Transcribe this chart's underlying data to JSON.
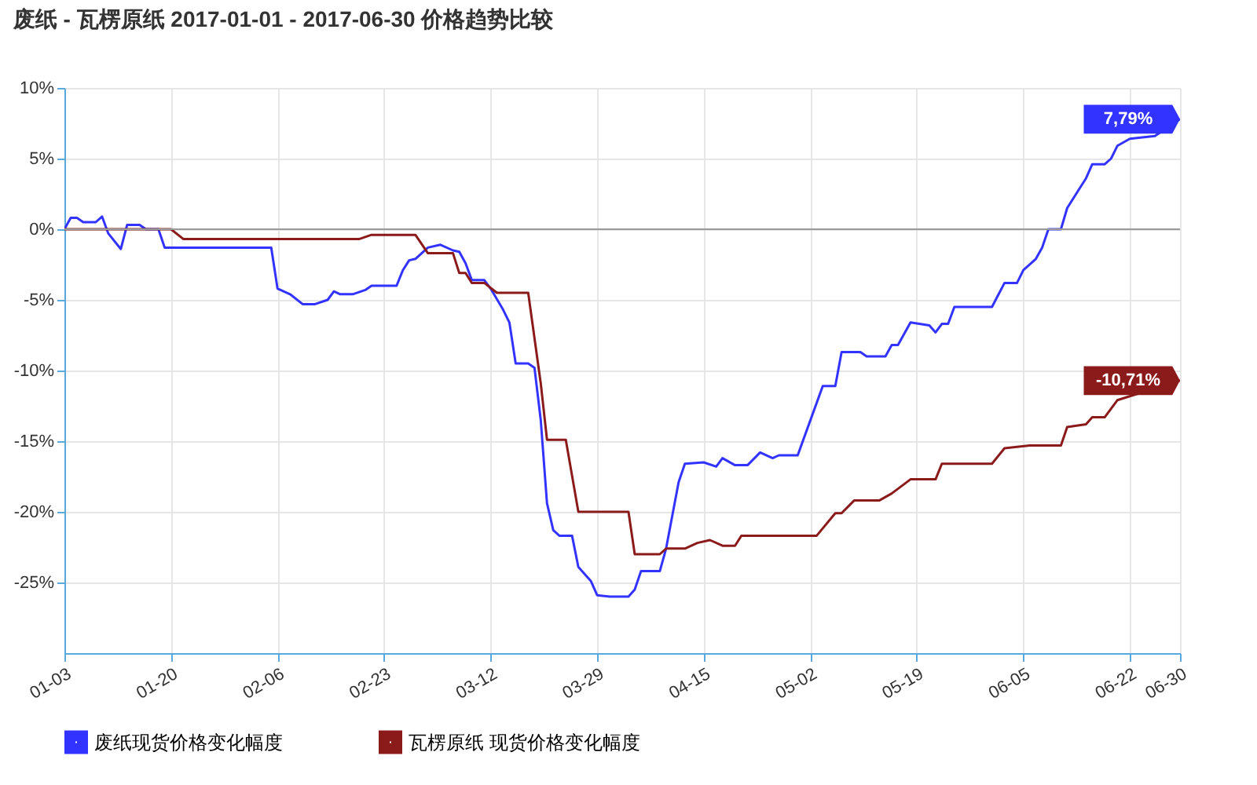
{
  "chart_data": {
    "type": "line",
    "title": "废纸 - 瓦楞原纸 2017-01-01 - 2017-06-30 价格趋势比较",
    "x": [
      "2017-01-03",
      "2017-01-04",
      "2017-01-05",
      "2017-01-06",
      "2017-01-08",
      "2017-01-09",
      "2017-01-10",
      "2017-01-12",
      "2017-01-13",
      "2017-01-15",
      "2017-01-16",
      "2017-01-18",
      "2017-01-19",
      "2017-02-05",
      "2017-02-06",
      "2017-02-08",
      "2017-02-10",
      "2017-02-12",
      "2017-02-14",
      "2017-02-15",
      "2017-02-16",
      "2017-02-18",
      "2017-02-20",
      "2017-02-21",
      "2017-02-25",
      "2017-02-26",
      "2017-02-27",
      "2017-02-28",
      "2017-03-02",
      "2017-03-04",
      "2017-03-06",
      "2017-03-07",
      "2017-03-08",
      "2017-03-09",
      "2017-03-11",
      "2017-03-12",
      "2017-03-14",
      "2017-03-15",
      "2017-03-16",
      "2017-03-18",
      "2017-03-19",
      "2017-03-20",
      "2017-03-21",
      "2017-03-22",
      "2017-03-23",
      "2017-03-25",
      "2017-03-26",
      "2017-03-28",
      "2017-03-29",
      "2017-03-31",
      "2017-04-03",
      "2017-04-04",
      "2017-04-05",
      "2017-04-08",
      "2017-04-09",
      "2017-04-11",
      "2017-04-12",
      "2017-04-15",
      "2017-04-17",
      "2017-04-18",
      "2017-04-20",
      "2017-04-22",
      "2017-04-24",
      "2017-04-26",
      "2017-04-27",
      "2017-04-30",
      "2017-05-04",
      "2017-05-06",
      "2017-05-07",
      "2017-05-10",
      "2017-05-11",
      "2017-05-14",
      "2017-05-15",
      "2017-05-16",
      "2017-05-18",
      "2017-05-21",
      "2017-05-22",
      "2017-05-23",
      "2017-05-24",
      "2017-05-25",
      "2017-05-31",
      "2017-06-02",
      "2017-06-04",
      "2017-06-05",
      "2017-06-07",
      "2017-06-08",
      "2017-06-09",
      "2017-06-11",
      "2017-06-12",
      "2017-06-14",
      "2017-06-15",
      "2017-06-16",
      "2017-06-18",
      "2017-06-19",
      "2017-06-20",
      "2017-06-22",
      "2017-06-26",
      "2017-06-30"
    ],
    "series": [
      {
        "name": "废纸现货价格变化幅度",
        "color": "#3333ff",
        "values": [
          0,
          0.8,
          0.8,
          0.5,
          0.5,
          0.9,
          -0.3,
          -1.4,
          0.3,
          0.3,
          0,
          0,
          -1.3,
          -1.3,
          -4.2,
          -4.6,
          -5.3,
          -5.3,
          -5.0,
          -4.4,
          -4.6,
          -4.6,
          -4.3,
          -4.0,
          -4.0,
          -2.9,
          -2.2,
          -2.1,
          -1.3,
          -1.1,
          -1.5,
          -1.6,
          -2.4,
          -3.6,
          -3.6,
          -4.2,
          -5.7,
          -6.6,
          -9.5,
          -9.5,
          -9.8,
          -13.5,
          -19.4,
          -21.3,
          -21.7,
          -21.7,
          -23.9,
          -24.9,
          -25.9,
          -26,
          -26,
          -25.5,
          -24.2,
          -24.2,
          -22.6,
          -17.9,
          -16.6,
          -16.5,
          -16.8,
          -16.2,
          -16.7,
          -16.7,
          -15.8,
          -16.2,
          -16.0,
          -16.0,
          -11.1,
          -11.1,
          -8.7,
          -8.7,
          -9.0,
          -9.0,
          -8.2,
          -8.2,
          -6.6,
          -6.8,
          -7.3,
          -6.7,
          -6.7,
          -5.5,
          -5.5,
          -3.8,
          -3.8,
          -2.9,
          -2.1,
          -1.3,
          0,
          0,
          1.5,
          2.9,
          3.6,
          4.6,
          4.6,
          5.0,
          5.9,
          6.4,
          6.6,
          7.79
        ]
      },
      {
        "name": "瓦楞原纸 现货价格变化幅度",
        "color": "#8b1a1a",
        "x": [
          "2017-01-03",
          "2017-01-20",
          "2017-01-22",
          "2017-02-19",
          "2017-02-21",
          "2017-02-28",
          "2017-03-02",
          "2017-03-06",
          "2017-03-07",
          "2017-03-08",
          "2017-03-09",
          "2017-03-11",
          "2017-03-13",
          "2017-03-18",
          "2017-03-20",
          "2017-03-21",
          "2017-03-24",
          "2017-03-26",
          "2017-04-03",
          "2017-04-04",
          "2017-04-08",
          "2017-04-09",
          "2017-04-12",
          "2017-04-14",
          "2017-04-16",
          "2017-04-18",
          "2017-04-20",
          "2017-04-21",
          "2017-05-03",
          "2017-05-06",
          "2017-05-07",
          "2017-05-09",
          "2017-05-13",
          "2017-05-15",
          "2017-05-18",
          "2017-05-22",
          "2017-05-23",
          "2017-05-31",
          "2017-06-02",
          "2017-06-06",
          "2017-06-11",
          "2017-06-12",
          "2017-06-15",
          "2017-06-16",
          "2017-06-18",
          "2017-06-19",
          "2017-06-20",
          "2017-06-30"
        ],
        "values": [
          0,
          0,
          -0.7,
          -0.7,
          -0.4,
          -0.4,
          -1.7,
          -1.7,
          -3.1,
          -3.1,
          -3.8,
          -3.8,
          -4.5,
          -4.5,
          -10.9,
          -14.9,
          -14.9,
          -20.0,
          -20.0,
          -23.0,
          -23.0,
          -22.6,
          -22.6,
          -22.2,
          -22.0,
          -22.4,
          -22.4,
          -21.7,
          -21.7,
          -20.1,
          -20.1,
          -19.2,
          -19.2,
          -18.7,
          -17.7,
          -17.7,
          -16.6,
          -16.6,
          -15.5,
          -15.3,
          -15.3,
          -14.0,
          -13.8,
          -13.3,
          -13.3,
          -12.7,
          -12.1,
          -10.71
        ]
      }
    ],
    "xlim": [
      "2017-01-03",
      "2017-06-30"
    ],
    "xticks": [
      {
        "value": "2017-01-03",
        "label": "01-03"
      },
      {
        "value": "2017-01-20",
        "label": "01-20"
      },
      {
        "value": "2017-02-06",
        "label": "02-06"
      },
      {
        "value": "2017-02-23",
        "label": "02-23"
      },
      {
        "value": "2017-03-12",
        "label": "03-12"
      },
      {
        "value": "2017-03-29",
        "label": "03-29"
      },
      {
        "value": "2017-04-15",
        "label": "04-15"
      },
      {
        "value": "2017-05-02",
        "label": "05-02"
      },
      {
        "value": "2017-05-19",
        "label": "05-19"
      },
      {
        "value": "2017-06-05",
        "label": "06-05"
      },
      {
        "value": "2017-06-22",
        "label": "06-22"
      },
      {
        "value": "2017-06-30",
        "label": "06-30"
      }
    ],
    "ylim": [
      -30,
      10
    ],
    "yticks": [
      {
        "value": -25,
        "label": "-25%"
      },
      {
        "value": -20,
        "label": "-20%"
      },
      {
        "value": -15,
        "label": "-15%"
      },
      {
        "value": -10,
        "label": "-10%"
      },
      {
        "value": -5,
        "label": "-5%"
      },
      {
        "value": 0,
        "label": "0%"
      },
      {
        "value": 5,
        "label": "5%"
      },
      {
        "value": 10,
        "label": "10%"
      }
    ],
    "ref_lines": [
      {
        "axis": "y",
        "value": 0,
        "color": "#999999"
      }
    ],
    "annotations": [
      {
        "text": "7,79%",
        "x": "2017-06-30",
        "y": 7.79
      },
      {
        "text": "-10,71%",
        "x": "2017-06-30",
        "y": -10.71
      }
    ],
    "grid": true,
    "legend": "bottom left",
    "marker": "none",
    "line_style": "solid"
  }
}
